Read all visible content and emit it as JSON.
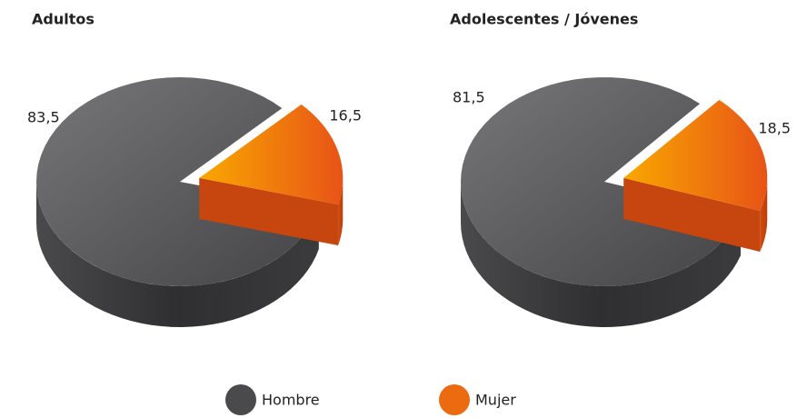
{
  "chart_data": [
    {
      "type": "pie",
      "title": "Adultos",
      "categories": [
        "Hombre",
        "Mujer"
      ],
      "values": [
        83.5,
        16.5
      ],
      "value_labels": [
        "83,5",
        "16,5"
      ],
      "colors": [
        "#4a4a4c",
        "#ec6a10"
      ],
      "legend": "bottom"
    },
    {
      "type": "pie",
      "title": "Adolescentes / Jóvenes",
      "categories": [
        "Hombre",
        "Mujer"
      ],
      "values": [
        81.5,
        18.5
      ],
      "value_labels": [
        "81,5",
        "18,5"
      ],
      "colors": [
        "#4a4a4c",
        "#ec6a10"
      ],
      "legend": "bottom"
    }
  ]
}
